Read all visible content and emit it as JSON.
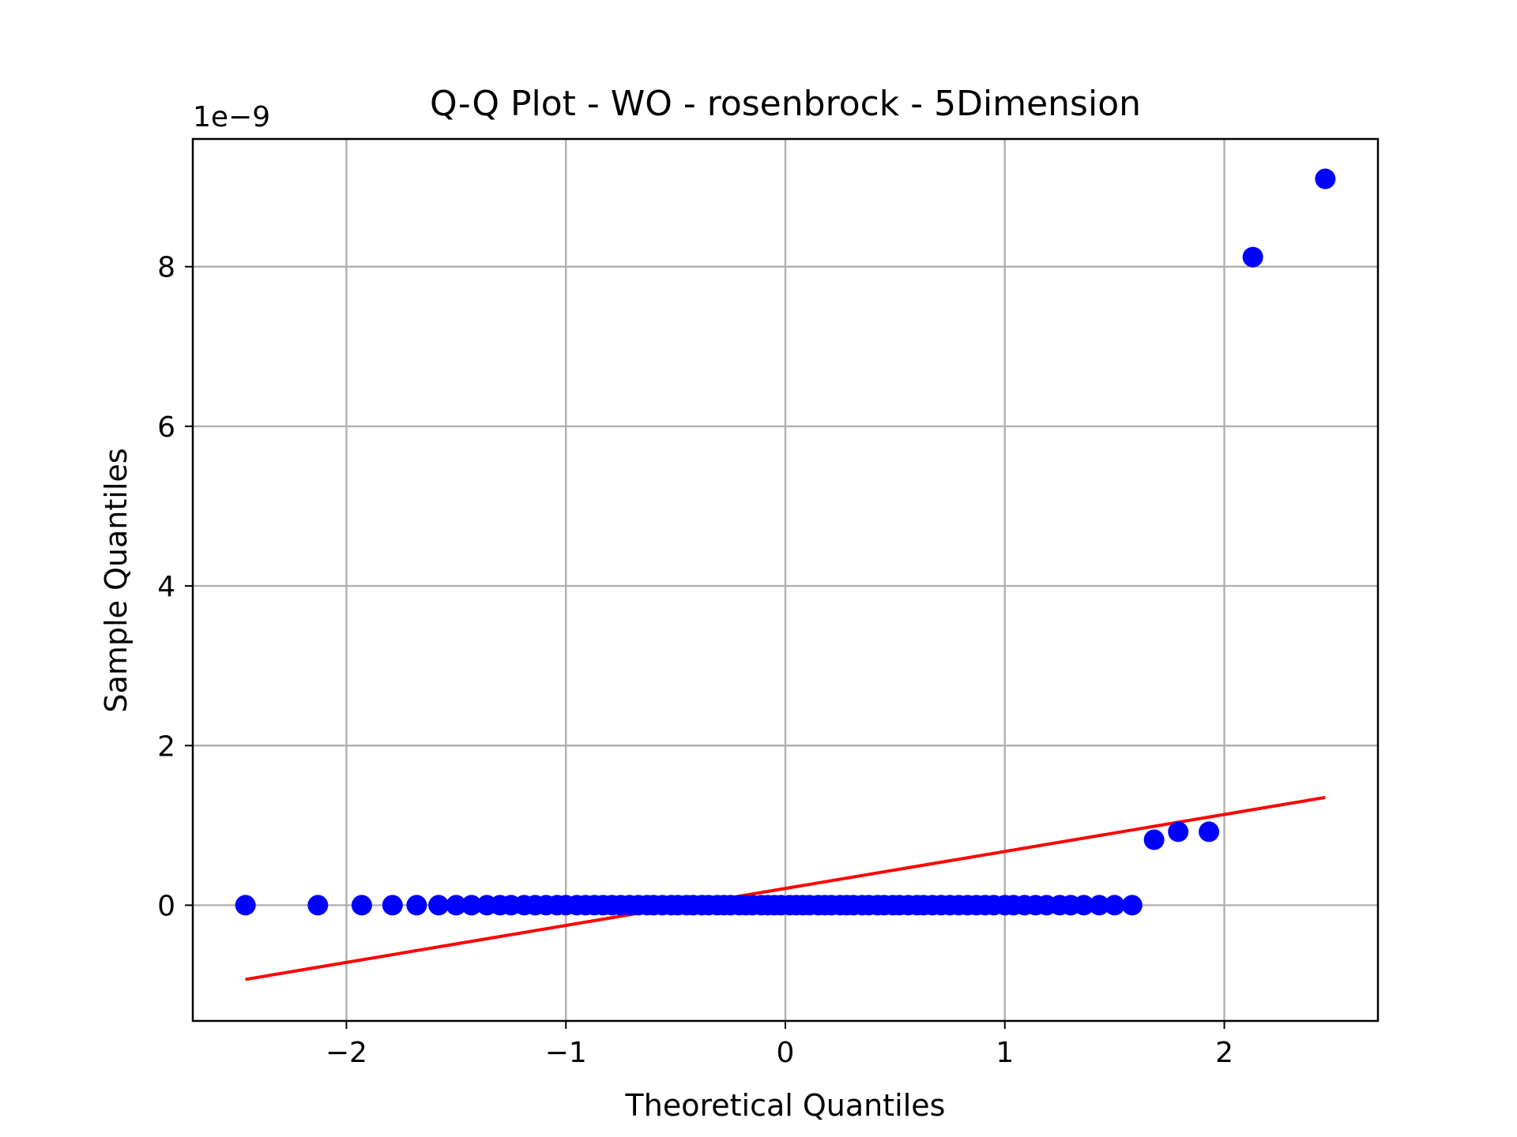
{
  "chart_data": {
    "type": "scatter",
    "title": "Q-Q Plot - WO - rosenbrock - 5Dimension",
    "xlabel": "Theoretical Quantiles",
    "ylabel": "Sample Quantiles",
    "y_offset_label": "1e−9",
    "xlim": [
      -2.7,
      2.7
    ],
    "ylim": [
      -1.45,
      9.6
    ],
    "grid": true,
    "x_ticks": [
      -2,
      -1,
      0,
      1,
      2
    ],
    "x_tick_labels": [
      "−2",
      "−1",
      "0",
      "1",
      "2"
    ],
    "y_ticks": [
      0,
      2,
      4,
      6,
      8
    ],
    "y_tick_labels": [
      "0",
      "2",
      "4",
      "6",
      "8"
    ],
    "point_color": "#0000ff",
    "line_color": "#ff0000",
    "series": [
      {
        "kind": "points",
        "x": [
          -2.46,
          -2.13,
          -1.93,
          -1.79,
          -1.68,
          -1.58,
          -1.5,
          -1.43,
          -1.36,
          -1.3,
          -1.25,
          -1.19,
          -1.14,
          -1.09,
          -1.04,
          -1.0,
          -0.95,
          -0.91,
          -0.87,
          -0.83,
          -0.79,
          -0.75,
          -0.71,
          -0.67,
          -0.63,
          -0.6,
          -0.56,
          -0.52,
          -0.49,
          -0.45,
          -0.42,
          -0.38,
          -0.35,
          -0.31,
          -0.28,
          -0.25,
          -0.21,
          -0.18,
          -0.15,
          -0.11,
          -0.08,
          -0.05,
          -0.02,
          0.02,
          0.05,
          0.08,
          0.11,
          0.15,
          0.18,
          0.21,
          0.25,
          0.28,
          0.31,
          0.35,
          0.38,
          0.42,
          0.45,
          0.49,
          0.52,
          0.56,
          0.6,
          0.63,
          0.67,
          0.71,
          0.75,
          0.79,
          0.83,
          0.87,
          0.91,
          0.95,
          1.0,
          1.04,
          1.09,
          1.14,
          1.19,
          1.25,
          1.3,
          1.36,
          1.43,
          1.5,
          1.58,
          1.68,
          1.79,
          1.93,
          2.13,
          2.46
        ],
        "y": [
          0,
          0,
          0,
          0,
          0,
          0,
          0,
          0,
          0,
          0,
          0,
          0,
          0,
          0,
          0,
          0,
          0,
          0,
          0,
          0,
          0,
          0,
          0,
          0,
          0,
          0,
          0,
          0,
          0,
          0,
          0,
          0,
          0,
          0,
          0,
          0,
          0,
          0,
          0,
          0,
          0,
          0,
          0,
          0,
          0,
          0,
          0,
          0,
          0,
          0,
          0,
          0,
          0,
          0,
          0,
          0,
          0,
          0,
          0,
          0,
          0,
          0,
          0,
          0,
          0,
          0,
          0,
          0,
          0,
          0,
          0,
          0,
          0,
          0,
          0,
          0,
          0,
          0,
          0,
          0,
          0,
          0.82,
          0.92,
          0.92,
          8.12,
          9.1
        ]
      },
      {
        "kind": "line",
        "x": [
          -2.46,
          2.46
        ],
        "y": [
          -0.93,
          1.35
        ]
      }
    ]
  }
}
